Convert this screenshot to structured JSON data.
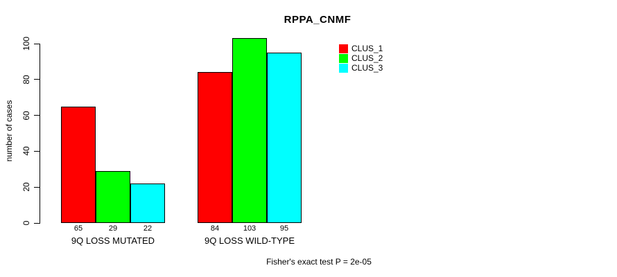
{
  "chart_data": {
    "type": "bar",
    "title": "RPPA_CNMF",
    "ylabel": "number of cases",
    "xlabel": "",
    "ylim": [
      0,
      100
    ],
    "yticks": [
      0,
      20,
      40,
      60,
      80,
      100
    ],
    "grid": false,
    "legend_position": "top-right",
    "categories": [
      "9Q LOSS MUTATED",
      "9Q LOSS WILD-TYPE"
    ],
    "series": [
      {
        "name": "CLUS_1",
        "color": "#ff0000",
        "values": [
          65,
          84
        ]
      },
      {
        "name": "CLUS_2",
        "color": "#00ff00",
        "values": [
          29,
          103
        ]
      },
      {
        "name": "CLUS_3",
        "color": "#00ffff",
        "values": [
          22,
          95
        ]
      }
    ],
    "bar_value_labels": [
      [
        65,
        29,
        22
      ],
      [
        84,
        103,
        95
      ]
    ],
    "annotation": "Fisher's exact test P = 2e-05"
  },
  "colors": {
    "background": "#ffffff",
    "axis": "#000000",
    "text": "#000000"
  }
}
